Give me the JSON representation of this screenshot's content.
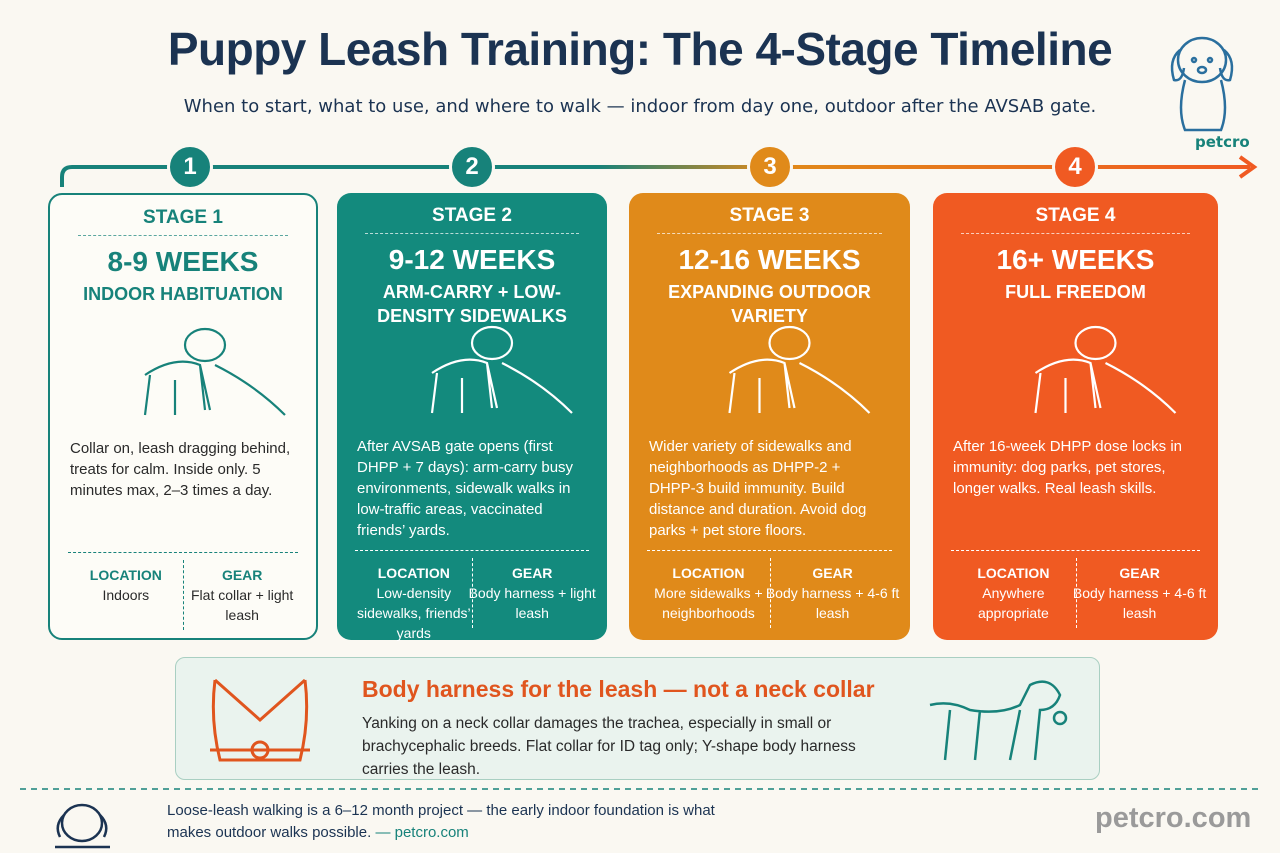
{
  "header": {
    "title": "Puppy Leash Training: The 4-Stage Timeline",
    "subtitle": "When to start, what to use, and where to walk — indoor from day one, outdoor after the AVSAB gate.",
    "brand": "petcro"
  },
  "stages": [
    {
      "number": "1",
      "label": "STAGE 1",
      "weeks": "8-9 WEEKS",
      "title": "INDOOR HABITUATION",
      "description": "Collar on, leash dragging behind, treats for calm. Inside only. 5 minutes max, 2–3 times a day.",
      "location_label": "LOCATION",
      "location": "Indoors",
      "gear_label": "GEAR",
      "gear": "Flat collar + light leash"
    },
    {
      "number": "2",
      "label": "STAGE 2",
      "weeks": "9-12 WEEKS",
      "title": "ARM-CARRY + LOW-DENSITY SIDEWALKS",
      "description": "After AVSAB gate opens (first DHPP + 7 days): arm-carry busy environments, sidewalk walks in low-traffic areas, vaccinated friends’ yards.",
      "location_label": "LOCATION",
      "location": "Low-density sidewalks, friends’ yards",
      "gear_label": "GEAR",
      "gear": "Body harness + light leash"
    },
    {
      "number": "3",
      "label": "STAGE 3",
      "weeks": "12-16 WEEKS",
      "title": "EXPANDING OUTDOOR VARIETY",
      "description": "Wider variety of sidewalks and neighborhoods as DHPP-2 + DHPP-3 build immunity. Build distance and duration. Avoid dog parks + pet store floors.",
      "location_label": "LOCATION",
      "location": "More sidewalks + neighborhoods",
      "gear_label": "GEAR",
      "gear": "Body harness + 4-6 ft leash"
    },
    {
      "number": "4",
      "label": "STAGE 4",
      "weeks": "16+ WEEKS",
      "title": "FULL FREEDOM",
      "description": "After 16-week DHPP dose locks in immunity: dog parks, pet stores, longer walks. Real leash skills.",
      "location_label": "LOCATION",
      "location": "Anywhere appropriate",
      "gear_label": "GEAR",
      "gear": "Body harness + 4-6 ft leash"
    }
  ],
  "callout": {
    "title": "Body harness for the leash — not a neck collar",
    "text": "Yanking on a neck collar damages the trachea, especially in small or brachycephalic breeds. Flat collar for ID tag only; Y-shape body harness carries the leash."
  },
  "footer": {
    "note": "Loose-leash walking is a 6–12 month project — the early indoor foundation is what makes outdoor walks possible.",
    "source": "— petcro.com",
    "brand": "petcro.com"
  }
}
